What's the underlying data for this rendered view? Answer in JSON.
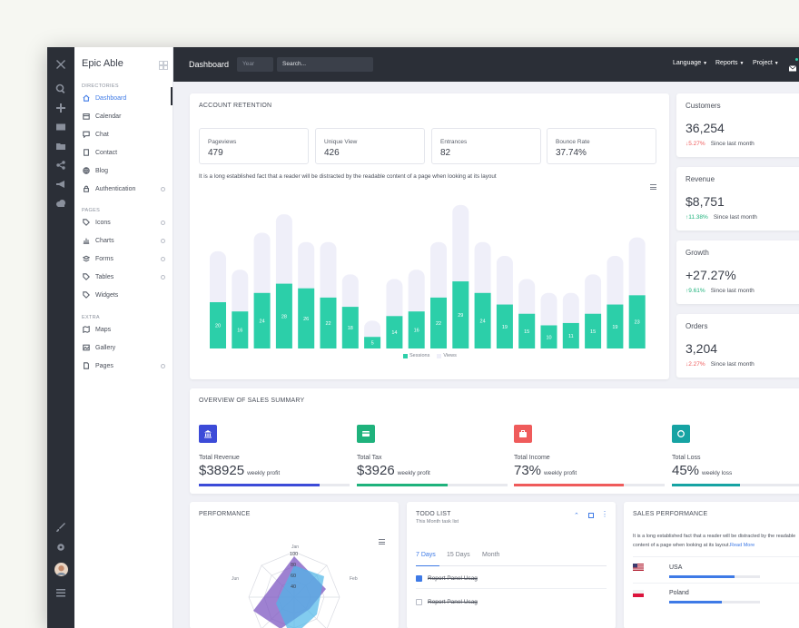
{
  "sidebar": {
    "brand": "Epic Able",
    "sections": [
      "DIRECTORIES",
      "PAGES",
      "EXTRA"
    ],
    "items": [
      {
        "label": "Dashboard",
        "icon": "home-icon",
        "active": true
      },
      {
        "label": "Calendar",
        "icon": "calendar-icon"
      },
      {
        "label": "Chat",
        "icon": "chat-icon"
      },
      {
        "label": "Contact",
        "icon": "contact-icon"
      },
      {
        "label": "Blog",
        "icon": "globe-icon"
      },
      {
        "label": "Authentication",
        "icon": "lock-icon",
        "expandable": true
      },
      {
        "label": "Icons",
        "icon": "tag-icon",
        "expandable": true
      },
      {
        "label": "Charts",
        "icon": "bar-chart-icon",
        "expandable": true
      },
      {
        "label": "Forms",
        "icon": "layers-icon",
        "expandable": true
      },
      {
        "label": "Tables",
        "icon": "tag-icon",
        "expandable": true
      },
      {
        "label": "Widgets",
        "icon": "tag-icon"
      },
      {
        "label": "Maps",
        "icon": "map-icon"
      },
      {
        "label": "Gallery",
        "icon": "image-icon"
      },
      {
        "label": "Pages",
        "icon": "file-icon",
        "expandable": true
      }
    ]
  },
  "topbar": {
    "title": "Dashboard",
    "year_placeholder": "Year",
    "search_placeholder": "Search...",
    "menus": [
      "Language",
      "Reports",
      "Project"
    ]
  },
  "retention": {
    "title": "ACCOUNT RETENTION",
    "stats": [
      {
        "label": "Pageviews",
        "value": "479"
      },
      {
        "label": "Unique View",
        "value": "426"
      },
      {
        "label": "Entrances",
        "value": "82"
      },
      {
        "label": "Bounce Rate",
        "value": "37.74%"
      }
    ],
    "description": "It is a long established fact that a reader will be distracted by the readable content of a page when looking at its layout"
  },
  "chart_data": {
    "type": "bar",
    "series": [
      {
        "name": "Sessions",
        "values": [
          20,
          16,
          24,
          28,
          26,
          22,
          18,
          5,
          14,
          16,
          22,
          29,
          24,
          19,
          15,
          10,
          11,
          15,
          19,
          23
        ]
      },
      {
        "name": "Views",
        "values": [
          42,
          34,
          50,
          58,
          46,
          46,
          32,
          12,
          30,
          34,
          46,
          62,
          46,
          40,
          30,
          24,
          24,
          32,
          40,
          48
        ]
      }
    ],
    "legend": "bottom",
    "colors": {
      "Sessions": "#2ccfa9",
      "Views": "#efeff9"
    }
  },
  "metrics": [
    {
      "title": "Customers",
      "value": "36,254",
      "change": "5.27%",
      "direction": "down",
      "since": "Since last month"
    },
    {
      "title": "Revenue",
      "value": "$8,751",
      "change": "11.38%",
      "direction": "up",
      "since": "Since last month"
    },
    {
      "title": "Growth",
      "value": "+27.27%",
      "change": "9.61%",
      "direction": "up",
      "since": "Since last month"
    },
    {
      "title": "Orders",
      "value": "3,204",
      "change": "2.27%",
      "direction": "down",
      "since": "Since last month"
    }
  ],
  "sales": {
    "title": "OVERVIEW OF SALES SUMMARY",
    "items": [
      {
        "label": "Total Revenue",
        "value": "$38925",
        "sub": "weekly profit",
        "color": "#3c4bd8",
        "progress": 0.8,
        "icon": "bank-icon"
      },
      {
        "label": "Total Tax",
        "value": "$3926",
        "sub": "weekly profit",
        "color": "#1fb27c",
        "progress": 0.6,
        "icon": "card-icon"
      },
      {
        "label": "Total Income",
        "value": "73%",
        "sub": "weekly profit",
        "color": "#ef5b5b",
        "progress": 0.73,
        "icon": "briefcase-icon"
      },
      {
        "label": "Total Loss",
        "value": "45%",
        "sub": "weekly loss",
        "color": "#16a3a3",
        "progress": 0.45,
        "icon": "circle-icon"
      }
    ]
  },
  "performance": {
    "title": "PERFORMANCE",
    "radar_labels": [
      "Jan",
      "Feb",
      "Jun"
    ],
    "radar_ticks": [
      "100",
      "80",
      "60",
      "40"
    ]
  },
  "todo": {
    "title": "TODO LIST",
    "subtitle": "This Month task list",
    "tabs": [
      "7 Days",
      "15 Days",
      "Month"
    ],
    "items": [
      "Report Panel Usag",
      "Report Panel Usag"
    ]
  },
  "sales_performance": {
    "title": "SALES PERFORMANCE",
    "description": "It is a long established fact that a reader will be distracted by the readable content of a page when looking at its layout.",
    "read_more": "Read More",
    "countries": [
      {
        "name": "USA",
        "progress": 0.72
      },
      {
        "name": "Poland",
        "progress": 0.58
      }
    ]
  }
}
